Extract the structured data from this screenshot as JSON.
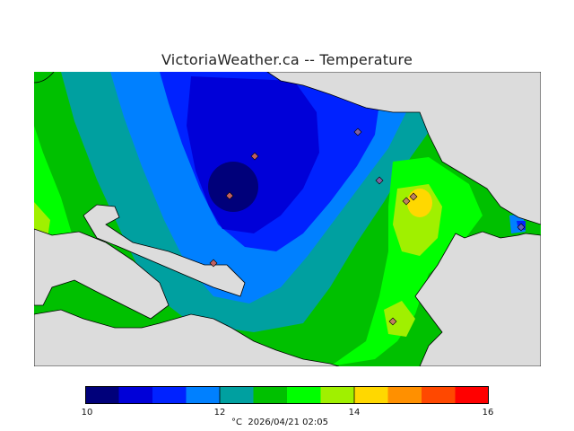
{
  "header": {
    "title": "VictoriaWeather.ca -- Temperature"
  },
  "legend": {
    "min": 10,
    "max": 16,
    "tick_labels": [
      "10",
      "12",
      "14",
      "16"
    ],
    "unit_and_time": "°C  2026/04/21 02:05",
    "colors": [
      "#00007a",
      "#0000d8",
      "#0022ff",
      "#0080ff",
      "#00a0a0",
      "#00c000",
      "#00ff00",
      "#a0f000",
      "#ffd800",
      "#ff9000",
      "#ff4800",
      "#ff0000"
    ]
  },
  "colors": {
    "land_background": "#dcdcdc",
    "sea": "#dcdcdc",
    "coast": "#000000"
  },
  "stations": [
    {
      "name": "station",
      "value": 11.0
    },
    {
      "name": "station",
      "value": 10.2
    },
    {
      "name": "station",
      "value": 11.5
    },
    {
      "name": "station",
      "value": 12.8
    },
    {
      "name": "station",
      "value": 14.2
    },
    {
      "name": "station",
      "value": 14.4
    },
    {
      "name": "station",
      "value": 12.0
    },
    {
      "name": "station",
      "value": 13.6
    },
    {
      "name": "station",
      "value": 10.9
    }
  ]
}
